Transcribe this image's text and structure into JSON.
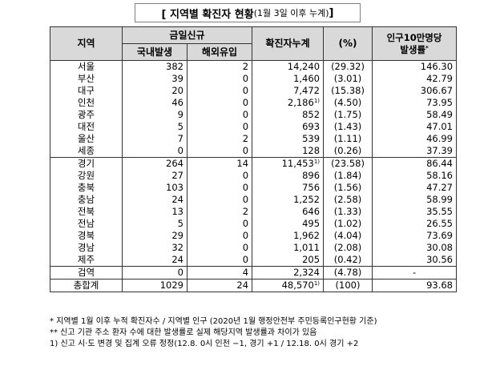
{
  "title": {
    "main": "[ 지역별 확진자 현황",
    "sub": "(1월 3일 이후 누계)",
    "close": " ]"
  },
  "headers": {
    "region": "지역",
    "new_today": "금일신규",
    "domestic": "국내발생",
    "imported": "해외유입",
    "cumulative": "확진자누계",
    "percent": "(%)",
    "rate_line1": "인구10만명당",
    "rate_line2": "발생률",
    "rate_mark": "*"
  },
  "rows": [
    {
      "region": "서울",
      "domestic": "382",
      "imported": "2",
      "cumulative": "14,240",
      "note": "",
      "percent": "(29.32)",
      "rate": "146.30"
    },
    {
      "region": "부산",
      "domestic": "39",
      "imported": "0",
      "cumulative": "1,460",
      "note": "",
      "percent": "(3.01)",
      "rate": "42.79"
    },
    {
      "region": "대구",
      "domestic": "20",
      "imported": "0",
      "cumulative": "7,472",
      "note": "",
      "percent": "(15.38)",
      "rate": "306.67"
    },
    {
      "region": "인천",
      "domestic": "46",
      "imported": "0",
      "cumulative": "2,186",
      "note": "1)",
      "percent": "(4.50)",
      "rate": "73.95"
    },
    {
      "region": "광주",
      "domestic": "9",
      "imported": "0",
      "cumulative": "852",
      "note": "",
      "percent": "(1.75)",
      "rate": "58.49"
    },
    {
      "region": "대전",
      "domestic": "5",
      "imported": "0",
      "cumulative": "693",
      "note": "",
      "percent": "(1.43)",
      "rate": "47.01"
    },
    {
      "region": "울산",
      "domestic": "7",
      "imported": "2",
      "cumulative": "539",
      "note": "",
      "percent": "(1.11)",
      "rate": "46.99"
    },
    {
      "region": "세종",
      "domestic": "0",
      "imported": "0",
      "cumulative": "128",
      "note": "",
      "percent": "(0.26)",
      "rate": "37.39"
    },
    {
      "region": "경기",
      "domestic": "264",
      "imported": "14",
      "cumulative": "11,453",
      "note": "1)",
      "percent": "(23.58)",
      "rate": "86.44"
    },
    {
      "region": "강원",
      "domestic": "27",
      "imported": "0",
      "cumulative": "896",
      "note": "",
      "percent": "(1.84)",
      "rate": "58.16"
    },
    {
      "region": "충북",
      "domestic": "103",
      "imported": "0",
      "cumulative": "756",
      "note": "",
      "percent": "(1.56)",
      "rate": "47.27"
    },
    {
      "region": "충남",
      "domestic": "24",
      "imported": "0",
      "cumulative": "1,252",
      "note": "",
      "percent": "(2.58)",
      "rate": "58.99"
    },
    {
      "region": "전북",
      "domestic": "13",
      "imported": "2",
      "cumulative": "646",
      "note": "",
      "percent": "(1.33)",
      "rate": "35.55"
    },
    {
      "region": "전남",
      "domestic": "5",
      "imported": "0",
      "cumulative": "495",
      "note": "",
      "percent": "(1.02)",
      "rate": "26.55"
    },
    {
      "region": "경북",
      "domestic": "29",
      "imported": "0",
      "cumulative": "1,962",
      "note": "",
      "percent": "(4.04)",
      "rate": "73.69"
    },
    {
      "region": "경남",
      "domestic": "32",
      "imported": "0",
      "cumulative": "1,011",
      "note": "",
      "percent": "(2.08)",
      "rate": "30.08"
    },
    {
      "region": "제주",
      "domestic": "24",
      "imported": "0",
      "cumulative": "205",
      "note": "",
      "percent": "(0.42)",
      "rate": "30.56"
    },
    {
      "region": "검역",
      "domestic": "0",
      "imported": "4",
      "cumulative": "2,324",
      "note": "",
      "percent": "(4.78)",
      "rate": "-"
    }
  ],
  "total": {
    "region": "총합계",
    "domestic": "1029",
    "imported": "24",
    "cumulative": "48,570",
    "note": "1)",
    "percent": "(100)",
    "rate": "93.68"
  },
  "notes": [
    "* 지역별 1월 이후 누적 확진자수 / 지역별 인구 (2020년 1월 행정안전부 주민등록인구현황 기준)",
    "** 신고 기관 주소 환자 수에 대한 발생률로 실제 해당지역 발생률과 차이가 있음",
    "1) 신고 시·도 변경 및 집계 오류 정정(12.8. 0시 인천 −1, 경기 +1 / 12.18. 0시 경기 +2"
  ]
}
